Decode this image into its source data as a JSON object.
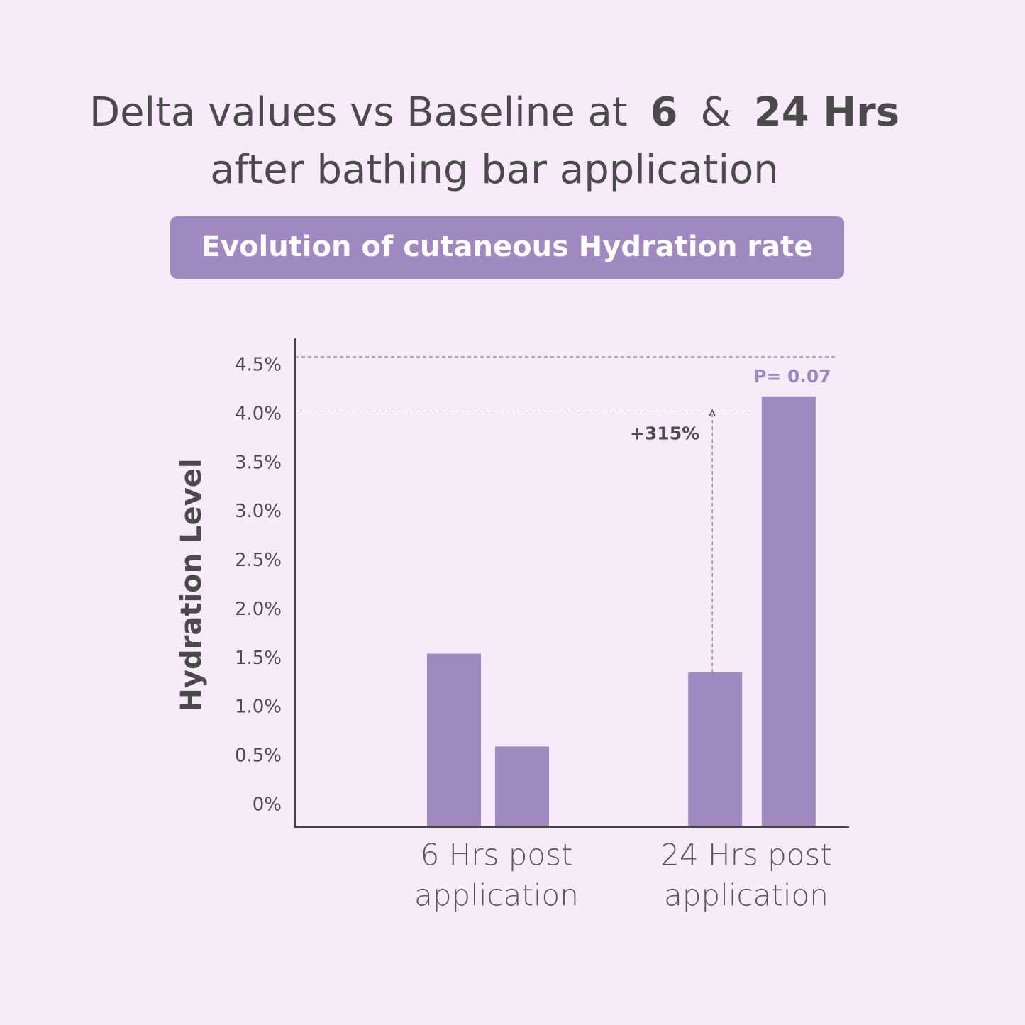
{
  "chart_data": {
    "type": "bar",
    "title": {
      "line1": [
        "Delta values vs Baseline at",
        "6",
        "&",
        "24 Hrs"
      ],
      "line2": "after bathing bar application"
    },
    "subtitle": "Evolution of cutaneous Hydration rate",
    "y_label": "Hydration Level",
    "categories": [
      [
        "6 Hrs post",
        "application"
      ],
      [
        "24 Hrs post",
        "application"
      ]
    ],
    "series": [
      {
        "color": "#a088c0",
        "values": [
          1.65,
          1.47
        ]
      },
      {
        "color": "#a088c0",
        "values": [
          0.76,
          4.12
        ]
      }
    ],
    "ylim": [
      0,
      4.5
    ],
    "yticks": [
      {
        "value": 0,
        "label": "0%"
      },
      {
        "value": 0.5,
        "label": "0.5%"
      },
      {
        "value": 1,
        "label": "1.0%"
      },
      {
        "value": 1.5,
        "label": "1.5%"
      },
      {
        "value": 2,
        "label": "2.0%"
      },
      {
        "value": 2.5,
        "label": "2.5%"
      },
      {
        "value": 3,
        "label": "3.0%"
      },
      {
        "value": 3.5,
        "label": "3.5%"
      },
      {
        "value": 4,
        "label": "4.0%"
      },
      {
        "value": 4.5,
        "label": "4.5%"
      }
    ],
    "dashed_lines": [
      4.5,
      4.0
    ],
    "annotations": [
      {
        "text": "+315%"
      },
      {
        "text": "P= 0.07",
        "color": "#a088c0"
      }
    ]
  }
}
